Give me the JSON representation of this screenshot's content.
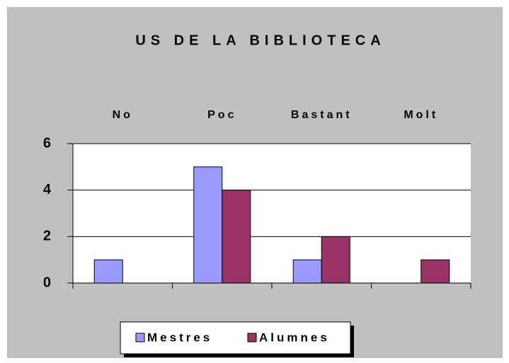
{
  "chart_data": {
    "type": "bar",
    "title": "US DE LA BIBLIOTECA",
    "categories": [
      "No",
      "Poc",
      "Bastant",
      "Molt"
    ],
    "series": [
      {
        "name": "Mestres",
        "color": "#9999ff",
        "values": [
          1,
          5,
          1,
          0
        ]
      },
      {
        "name": "Alumnes",
        "color": "#993366",
        "values": [
          0,
          4,
          2,
          1
        ]
      }
    ],
    "ylim": [
      0,
      6
    ],
    "yticks": [
      0,
      2,
      4,
      6
    ],
    "grid": true,
    "legend": "bottom"
  }
}
